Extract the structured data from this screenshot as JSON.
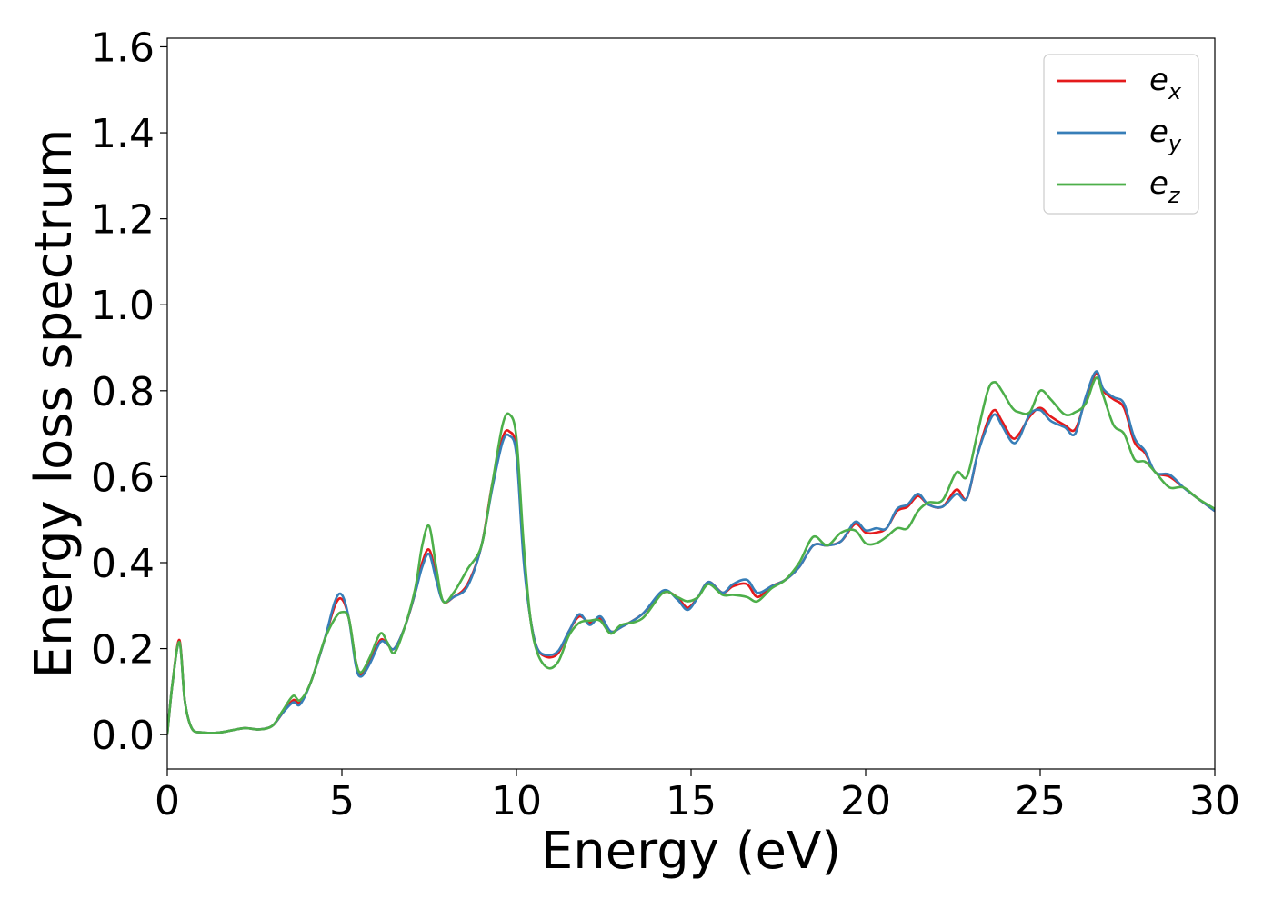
{
  "chart_data": {
    "type": "line",
    "xlabel": "Energy (eV)",
    "ylabel": "Energy loss spectrum",
    "xlim": [
      0,
      30
    ],
    "ylim": [
      -0.08,
      1.62
    ],
    "xticks": [
      0,
      5,
      10,
      15,
      20,
      25,
      30
    ],
    "xtick_labels": [
      "0",
      "5",
      "10",
      "15",
      "20",
      "25",
      "30"
    ],
    "yticks": [
      0.0,
      0.2,
      0.4,
      0.6,
      0.8,
      1.0,
      1.2,
      1.4,
      1.6
    ],
    "ytick_labels": [
      "0.0",
      "0.2",
      "0.4",
      "0.6",
      "0.8",
      "1.0",
      "1.2",
      "1.4",
      "1.6"
    ],
    "grid": false,
    "legend_position": "top-right",
    "series": [
      {
        "name": "e_x",
        "legend_base": "e",
        "legend_sub": "x",
        "color": "#e41a1c",
        "points": [
          [
            0,
            0
          ],
          [
            0.15,
            0.12
          ],
          [
            0.35,
            0.22
          ],
          [
            0.5,
            0.08
          ],
          [
            0.7,
            0.015
          ],
          [
            1.0,
            0.005
          ],
          [
            1.5,
            0.005
          ],
          [
            2.2,
            0.015
          ],
          [
            2.6,
            0.012
          ],
          [
            3.0,
            0.02
          ],
          [
            3.3,
            0.05
          ],
          [
            3.6,
            0.08
          ],
          [
            3.8,
            0.075
          ],
          [
            4.1,
            0.12
          ],
          [
            4.5,
            0.22
          ],
          [
            4.8,
            0.3
          ],
          [
            5.0,
            0.315
          ],
          [
            5.2,
            0.27
          ],
          [
            5.4,
            0.17
          ],
          [
            5.55,
            0.14
          ],
          [
            5.8,
            0.17
          ],
          [
            6.1,
            0.22
          ],
          [
            6.3,
            0.21
          ],
          [
            6.5,
            0.2
          ],
          [
            6.8,
            0.25
          ],
          [
            7.1,
            0.33
          ],
          [
            7.3,
            0.4
          ],
          [
            7.5,
            0.43
          ],
          [
            7.7,
            0.37
          ],
          [
            7.9,
            0.31
          ],
          [
            8.2,
            0.32
          ],
          [
            8.6,
            0.35
          ],
          [
            9.0,
            0.44
          ],
          [
            9.3,
            0.58
          ],
          [
            9.6,
            0.69
          ],
          [
            9.8,
            0.705
          ],
          [
            10.0,
            0.66
          ],
          [
            10.2,
            0.42
          ],
          [
            10.4,
            0.27
          ],
          [
            10.6,
            0.2
          ],
          [
            10.9,
            0.18
          ],
          [
            11.2,
            0.19
          ],
          [
            11.5,
            0.24
          ],
          [
            11.8,
            0.275
          ],
          [
            12.1,
            0.26
          ],
          [
            12.4,
            0.27
          ],
          [
            12.7,
            0.24
          ],
          [
            13.0,
            0.25
          ],
          [
            13.6,
            0.28
          ],
          [
            14.2,
            0.33
          ],
          [
            14.6,
            0.32
          ],
          [
            14.9,
            0.295
          ],
          [
            15.2,
            0.32
          ],
          [
            15.5,
            0.355
          ],
          [
            15.9,
            0.33
          ],
          [
            16.2,
            0.345
          ],
          [
            16.6,
            0.35
          ],
          [
            16.9,
            0.32
          ],
          [
            17.3,
            0.345
          ],
          [
            17.7,
            0.36
          ],
          [
            18.1,
            0.39
          ],
          [
            18.5,
            0.44
          ],
          [
            18.9,
            0.44
          ],
          [
            19.3,
            0.45
          ],
          [
            19.7,
            0.49
          ],
          [
            20.0,
            0.47
          ],
          [
            20.3,
            0.47
          ],
          [
            20.6,
            0.48
          ],
          [
            20.9,
            0.52
          ],
          [
            21.2,
            0.53
          ],
          [
            21.5,
            0.555
          ],
          [
            21.8,
            0.535
          ],
          [
            22.2,
            0.53
          ],
          [
            22.6,
            0.57
          ],
          [
            22.9,
            0.55
          ],
          [
            23.2,
            0.65
          ],
          [
            23.5,
            0.73
          ],
          [
            23.7,
            0.755
          ],
          [
            23.9,
            0.73
          ],
          [
            24.2,
            0.69
          ],
          [
            24.4,
            0.7
          ],
          [
            24.7,
            0.74
          ],
          [
            25.0,
            0.76
          ],
          [
            25.3,
            0.74
          ],
          [
            25.7,
            0.72
          ],
          [
            26.0,
            0.71
          ],
          [
            26.3,
            0.78
          ],
          [
            26.6,
            0.84
          ],
          [
            26.8,
            0.8
          ],
          [
            27.1,
            0.78
          ],
          [
            27.4,
            0.76
          ],
          [
            27.7,
            0.68
          ],
          [
            28.0,
            0.655
          ],
          [
            28.3,
            0.61
          ],
          [
            28.7,
            0.6
          ],
          [
            29.1,
            0.575
          ],
          [
            29.5,
            0.55
          ],
          [
            30.0,
            0.52
          ]
        ]
      },
      {
        "name": "e_y",
        "legend_base": "e",
        "legend_sub": "y",
        "color": "#377eb8",
        "points": [
          [
            0,
            0
          ],
          [
            0.15,
            0.12
          ],
          [
            0.35,
            0.215
          ],
          [
            0.5,
            0.08
          ],
          [
            0.7,
            0.015
          ],
          [
            1.0,
            0.005
          ],
          [
            1.5,
            0.005
          ],
          [
            2.2,
            0.015
          ],
          [
            2.6,
            0.012
          ],
          [
            3.0,
            0.02
          ],
          [
            3.3,
            0.05
          ],
          [
            3.6,
            0.075
          ],
          [
            3.8,
            0.07
          ],
          [
            4.1,
            0.12
          ],
          [
            4.5,
            0.22
          ],
          [
            4.8,
            0.31
          ],
          [
            5.0,
            0.325
          ],
          [
            5.2,
            0.27
          ],
          [
            5.4,
            0.16
          ],
          [
            5.55,
            0.135
          ],
          [
            5.8,
            0.165
          ],
          [
            6.1,
            0.215
          ],
          [
            6.3,
            0.21
          ],
          [
            6.5,
            0.2
          ],
          [
            6.8,
            0.25
          ],
          [
            7.1,
            0.33
          ],
          [
            7.3,
            0.39
          ],
          [
            7.5,
            0.42
          ],
          [
            7.7,
            0.36
          ],
          [
            7.9,
            0.31
          ],
          [
            8.2,
            0.32
          ],
          [
            8.6,
            0.345
          ],
          [
            9.0,
            0.44
          ],
          [
            9.3,
            0.57
          ],
          [
            9.6,
            0.68
          ],
          [
            9.8,
            0.695
          ],
          [
            10.0,
            0.65
          ],
          [
            10.2,
            0.41
          ],
          [
            10.4,
            0.27
          ],
          [
            10.6,
            0.2
          ],
          [
            10.9,
            0.185
          ],
          [
            11.2,
            0.195
          ],
          [
            11.5,
            0.24
          ],
          [
            11.8,
            0.28
          ],
          [
            12.1,
            0.255
          ],
          [
            12.4,
            0.275
          ],
          [
            12.7,
            0.24
          ],
          [
            13.0,
            0.25
          ],
          [
            13.6,
            0.28
          ],
          [
            14.2,
            0.335
          ],
          [
            14.6,
            0.315
          ],
          [
            14.9,
            0.29
          ],
          [
            15.2,
            0.32
          ],
          [
            15.5,
            0.355
          ],
          [
            15.9,
            0.33
          ],
          [
            16.2,
            0.35
          ],
          [
            16.6,
            0.36
          ],
          [
            16.9,
            0.33
          ],
          [
            17.3,
            0.345
          ],
          [
            17.7,
            0.36
          ],
          [
            18.1,
            0.39
          ],
          [
            18.5,
            0.44
          ],
          [
            18.9,
            0.44
          ],
          [
            19.3,
            0.45
          ],
          [
            19.7,
            0.495
          ],
          [
            20.0,
            0.475
          ],
          [
            20.3,
            0.48
          ],
          [
            20.6,
            0.48
          ],
          [
            20.9,
            0.525
          ],
          [
            21.2,
            0.535
          ],
          [
            21.5,
            0.56
          ],
          [
            21.8,
            0.535
          ],
          [
            22.2,
            0.53
          ],
          [
            22.6,
            0.56
          ],
          [
            22.9,
            0.55
          ],
          [
            23.2,
            0.65
          ],
          [
            23.5,
            0.72
          ],
          [
            23.7,
            0.745
          ],
          [
            23.9,
            0.72
          ],
          [
            24.2,
            0.68
          ],
          [
            24.4,
            0.69
          ],
          [
            24.7,
            0.745
          ],
          [
            25.0,
            0.755
          ],
          [
            25.3,
            0.73
          ],
          [
            25.7,
            0.715
          ],
          [
            26.0,
            0.7
          ],
          [
            26.3,
            0.785
          ],
          [
            26.6,
            0.845
          ],
          [
            26.8,
            0.805
          ],
          [
            27.1,
            0.785
          ],
          [
            27.4,
            0.77
          ],
          [
            27.7,
            0.69
          ],
          [
            28.0,
            0.66
          ],
          [
            28.3,
            0.61
          ],
          [
            28.7,
            0.605
          ],
          [
            29.1,
            0.575
          ],
          [
            29.5,
            0.55
          ],
          [
            30.0,
            0.52
          ]
        ]
      },
      {
        "name": "e_z",
        "legend_base": "e",
        "legend_sub": "z",
        "color": "#4daf4a",
        "points": [
          [
            0,
            0
          ],
          [
            0.15,
            0.12
          ],
          [
            0.35,
            0.215
          ],
          [
            0.5,
            0.08
          ],
          [
            0.7,
            0.015
          ],
          [
            1.0,
            0.005
          ],
          [
            1.5,
            0.005
          ],
          [
            2.2,
            0.015
          ],
          [
            2.6,
            0.012
          ],
          [
            3.0,
            0.02
          ],
          [
            3.3,
            0.055
          ],
          [
            3.6,
            0.09
          ],
          [
            3.8,
            0.08
          ],
          [
            4.1,
            0.12
          ],
          [
            4.5,
            0.22
          ],
          [
            4.8,
            0.27
          ],
          [
            5.0,
            0.285
          ],
          [
            5.2,
            0.27
          ],
          [
            5.4,
            0.17
          ],
          [
            5.55,
            0.145
          ],
          [
            5.8,
            0.18
          ],
          [
            6.1,
            0.235
          ],
          [
            6.3,
            0.215
          ],
          [
            6.5,
            0.19
          ],
          [
            6.8,
            0.25
          ],
          [
            7.1,
            0.34
          ],
          [
            7.3,
            0.44
          ],
          [
            7.5,
            0.485
          ],
          [
            7.7,
            0.39
          ],
          [
            7.9,
            0.31
          ],
          [
            8.2,
            0.33
          ],
          [
            8.6,
            0.385
          ],
          [
            9.0,
            0.44
          ],
          [
            9.3,
            0.58
          ],
          [
            9.6,
            0.72
          ],
          [
            9.8,
            0.745
          ],
          [
            10.0,
            0.69
          ],
          [
            10.2,
            0.45
          ],
          [
            10.4,
            0.27
          ],
          [
            10.6,
            0.19
          ],
          [
            10.9,
            0.155
          ],
          [
            11.2,
            0.17
          ],
          [
            11.5,
            0.23
          ],
          [
            11.8,
            0.26
          ],
          [
            12.1,
            0.265
          ],
          [
            12.4,
            0.265
          ],
          [
            12.7,
            0.235
          ],
          [
            13.0,
            0.255
          ],
          [
            13.6,
            0.27
          ],
          [
            14.2,
            0.33
          ],
          [
            14.6,
            0.32
          ],
          [
            14.9,
            0.31
          ],
          [
            15.2,
            0.32
          ],
          [
            15.5,
            0.35
          ],
          [
            15.9,
            0.325
          ],
          [
            16.2,
            0.325
          ],
          [
            16.6,
            0.32
          ],
          [
            16.9,
            0.31
          ],
          [
            17.3,
            0.34
          ],
          [
            17.7,
            0.36
          ],
          [
            18.1,
            0.4
          ],
          [
            18.5,
            0.46
          ],
          [
            18.9,
            0.44
          ],
          [
            19.3,
            0.47
          ],
          [
            19.7,
            0.475
          ],
          [
            20.0,
            0.445
          ],
          [
            20.3,
            0.445
          ],
          [
            20.6,
            0.46
          ],
          [
            20.9,
            0.48
          ],
          [
            21.2,
            0.48
          ],
          [
            21.5,
            0.52
          ],
          [
            21.8,
            0.54
          ],
          [
            22.2,
            0.545
          ],
          [
            22.6,
            0.61
          ],
          [
            22.9,
            0.6
          ],
          [
            23.2,
            0.7
          ],
          [
            23.5,
            0.8
          ],
          [
            23.7,
            0.82
          ],
          [
            23.9,
            0.8
          ],
          [
            24.2,
            0.76
          ],
          [
            24.4,
            0.75
          ],
          [
            24.7,
            0.75
          ],
          [
            25.0,
            0.8
          ],
          [
            25.3,
            0.78
          ],
          [
            25.7,
            0.745
          ],
          [
            26.0,
            0.75
          ],
          [
            26.3,
            0.77
          ],
          [
            26.6,
            0.83
          ],
          [
            26.8,
            0.79
          ],
          [
            27.1,
            0.72
          ],
          [
            27.4,
            0.7
          ],
          [
            27.7,
            0.64
          ],
          [
            28.0,
            0.635
          ],
          [
            28.3,
            0.61
          ],
          [
            28.7,
            0.575
          ],
          [
            29.1,
            0.575
          ],
          [
            29.5,
            0.55
          ],
          [
            30.0,
            0.525
          ]
        ]
      }
    ]
  }
}
